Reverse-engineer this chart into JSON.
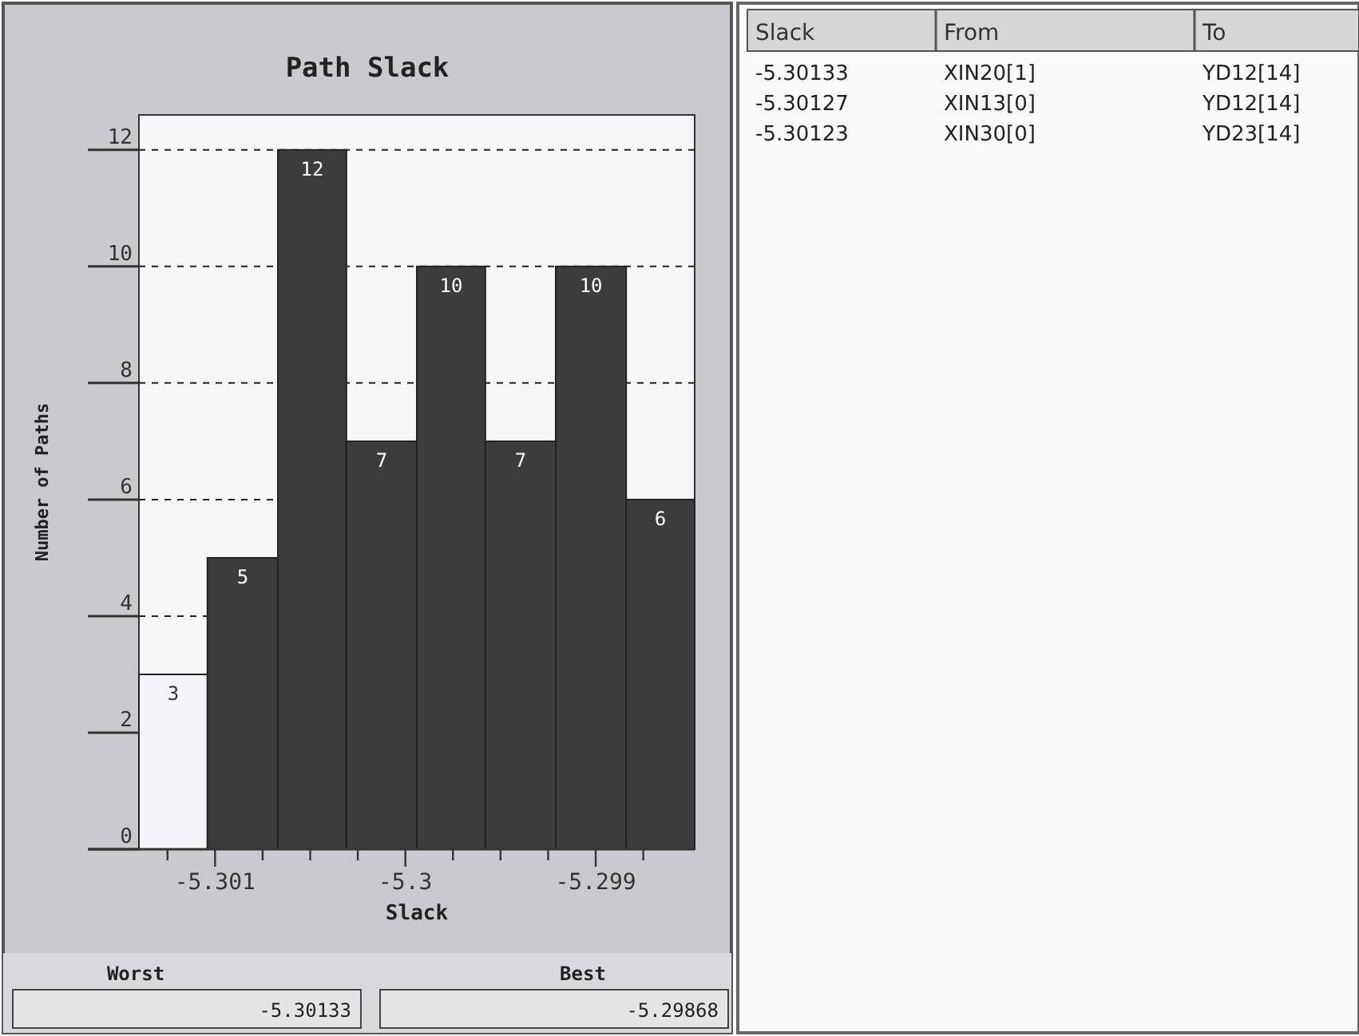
{
  "chart_data": [
    {
      "type": "histogram",
      "title": "Path Slack",
      "xlabel": "Slack",
      "ylabel": "Number of Paths",
      "bins": [
        -5.3014,
        -5.30104,
        -5.30067,
        -5.30031,
        -5.29994,
        -5.29958,
        -5.29921,
        -5.29884,
        -5.29848
      ],
      "values": [
        3,
        5,
        12,
        7,
        10,
        7,
        10,
        6
      ],
      "colors": [
        "#f4f5f9",
        "#3c3c3c",
        "#3c3c3c",
        "#3c3c3c",
        "#3c3c3c",
        "#3c3c3c",
        "#3c3c3c",
        "#3c3c3c"
      ],
      "data_labels": true,
      "xlim": [
        -5.3014,
        -5.29848
      ],
      "xticks": [
        {
          "value": -5.30125,
          "label": null
        },
        {
          "value": -5.301,
          "label": "-5.301"
        },
        {
          "value": -5.30075,
          "label": null
        },
        {
          "value": -5.3005,
          "label": null
        },
        {
          "value": -5.30025,
          "label": null
        },
        {
          "value": -5.3,
          "label": "-5.3"
        },
        {
          "value": -5.29975,
          "label": null
        },
        {
          "value": -5.2995,
          "label": null
        },
        {
          "value": -5.29925,
          "label": null
        },
        {
          "value": -5.299,
          "label": "-5.299"
        },
        {
          "value": -5.29875,
          "label": null
        }
      ],
      "ylim": [
        0,
        12.6
      ],
      "yticks": [
        0,
        2,
        4,
        6,
        8,
        10,
        12
      ],
      "grid": "y",
      "annotations": [
        "Worst",
        "-5.30133",
        "Best",
        "-5.29868"
      ]
    },
    {
      "type": "other",
      "categories": [
        "Slack",
        "From",
        "To"
      ],
      "annotations": [
        "-5.30133",
        "XIN20[1]",
        "YD12[14]",
        "-5.30127",
        "XIN13[0]",
        "YD12[14]",
        "-5.30123",
        "XIN30[0]",
        "YD23[14]"
      ]
    }
  ]
}
